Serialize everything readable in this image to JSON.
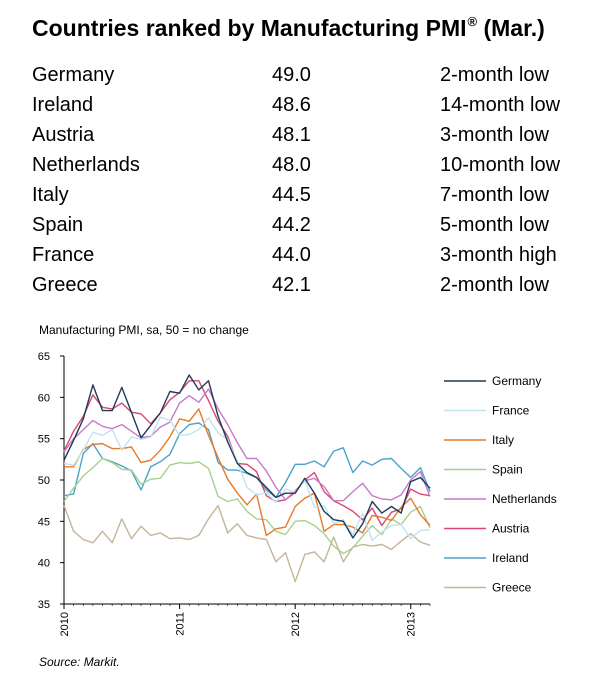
{
  "title": {
    "text": "Countries ranked by Manufacturing PMI",
    "mark": "®",
    "suffix": "(Mar.)"
  },
  "ranking": [
    {
      "country": "Germany",
      "value": "49.0",
      "note": "2-month low"
    },
    {
      "country": "Ireland",
      "value": "48.6",
      "note": "14-month low"
    },
    {
      "country": "Austria",
      "value": "48.1",
      "note": "3-month low"
    },
    {
      "country": "Netherlands",
      "value": "48.0",
      "note": "10-month low"
    },
    {
      "country": "Italy",
      "value": "44.5",
      "note": "7-month low"
    },
    {
      "country": "Spain",
      "value": "44.2",
      "note": "5-month low"
    },
    {
      "country": "France",
      "value": "44.0",
      "note": "3-month high"
    },
    {
      "country": "Greece",
      "value": "42.1",
      "note": "2-month low"
    }
  ],
  "source": "Source: Markit.",
  "chart_data": {
    "type": "line",
    "title": "Manufacturing PMI, sa, 50 = no change",
    "xlabel": "",
    "ylabel": "",
    "ylim": [
      35,
      65
    ],
    "yticks": [
      35,
      40,
      45,
      50,
      55,
      60,
      65
    ],
    "xticks": [
      "2010",
      "2011",
      "2012",
      "2013"
    ],
    "x_start": "2010-01",
    "x_end": "2013-03",
    "grid": false,
    "legend_position": "right",
    "series": [
      {
        "name": "Germany",
        "color": "#1f3a5a",
        "values": [
          52.4,
          54.8,
          57.4,
          61.5,
          58.4,
          58.4,
          61.2,
          58.2,
          55.1,
          56.6,
          58.1,
          60.7,
          60.5,
          62.7,
          60.9,
          62.0,
          57.7,
          54.6,
          52.0,
          50.9,
          50.3,
          49.1,
          47.9,
          48.4,
          48.4,
          50.2,
          48.4,
          46.2,
          45.2,
          45.0,
          43.0,
          44.7,
          47.4,
          46.0,
          46.8,
          46.0,
          49.8,
          50.3,
          49.0
        ]
      },
      {
        "name": "France",
        "color": "#bfe4ef",
        "values": [
          52.0,
          51.8,
          53.6,
          55.8,
          55.4,
          56.1,
          53.6,
          55.2,
          54.9,
          55.2,
          57.6,
          57.2,
          55.4,
          55.5,
          56.1,
          57.5,
          55.7,
          54.9,
          52.2,
          49.1,
          48.2,
          48.5,
          47.3,
          48.9,
          48.5,
          50.0,
          46.7,
          46.9,
          44.7,
          45.2,
          43.4,
          46.0,
          42.7,
          43.7,
          44.5,
          44.6,
          42.9,
          43.9,
          44.0
        ]
      },
      {
        "name": "Italy",
        "color": "#e57a29",
        "values": [
          51.6,
          51.6,
          53.7,
          54.3,
          54.4,
          53.8,
          53.8,
          54.0,
          52.1,
          52.4,
          53.6,
          55.2,
          57.4,
          57.1,
          58.6,
          55.4,
          52.7,
          50.1,
          48.4,
          47.0,
          48.3,
          43.3,
          44.1,
          44.3,
          46.8,
          47.8,
          48.4,
          43.8,
          44.6,
          44.6,
          44.3,
          43.6,
          45.7,
          45.5,
          45.1,
          46.7,
          47.8,
          45.8,
          44.5
        ]
      },
      {
        "name": "Spain",
        "color": "#a8d08d",
        "values": [
          47.4,
          49.0,
          50.5,
          51.5,
          52.6,
          52.1,
          51.3,
          51.2,
          49.5,
          50.1,
          50.2,
          51.8,
          52.1,
          52.0,
          52.2,
          51.4,
          48.0,
          47.4,
          47.7,
          46.2,
          45.3,
          45.2,
          43.8,
          43.4,
          45.0,
          45.1,
          44.5,
          43.5,
          42.0,
          41.1,
          41.8,
          43.2,
          44.5,
          43.4,
          45.3,
          44.6,
          46.1,
          46.8,
          44.2
        ]
      },
      {
        "name": "Netherlands",
        "color": "#c67bc9",
        "values": [
          53.4,
          55.0,
          56.1,
          57.2,
          56.5,
          56.2,
          56.7,
          55.9,
          55.1,
          55.3,
          56.4,
          57.0,
          59.3,
          60.2,
          59.4,
          61.0,
          58.6,
          56.7,
          54.5,
          52.6,
          52.6,
          51.1,
          49.1,
          47.6,
          48.7,
          49.9,
          50.2,
          49.2,
          47.5,
          47.5,
          48.6,
          49.6,
          48.1,
          47.7,
          47.6,
          48.2,
          50.0,
          51.0,
          48.0
        ]
      },
      {
        "name": "Austria",
        "color": "#d94873",
        "values": [
          53.5,
          55.9,
          57.7,
          60.3,
          58.8,
          58.6,
          59.3,
          58.2,
          58.0,
          56.8,
          58.1,
          59.7,
          60.6,
          62.0,
          62.0,
          59.6,
          57.1,
          55.3,
          52.0,
          51.9,
          51.0,
          48.1,
          47.4,
          47.6,
          48.5,
          50.0,
          50.9,
          48.6,
          47.5,
          46.9,
          46.2,
          45.2,
          46.6,
          44.5,
          46.1,
          46.5,
          48.9,
          48.3,
          48.1
        ]
      },
      {
        "name": "Ireland",
        "color": "#4ba4c8",
        "values": [
          48.1,
          48.3,
          53.2,
          54.4,
          52.6,
          52.2,
          51.7,
          51.1,
          48.8,
          51.6,
          52.2,
          53.1,
          55.6,
          56.7,
          56.9,
          56.1,
          52.1,
          51.2,
          51.2,
          50.8,
          50.3,
          48.8,
          47.9,
          49.7,
          51.9,
          51.9,
          52.3,
          51.6,
          53.5,
          53.9,
          50.9,
          52.3,
          51.8,
          52.5,
          52.6,
          51.4,
          50.3,
          51.5,
          48.6
        ]
      },
      {
        "name": "Greece",
        "color": "#c2b599",
        "values": [
          46.9,
          43.8,
          42.8,
          42.4,
          43.8,
          42.4,
          45.3,
          42.9,
          44.4,
          43.3,
          43.6,
          42.9,
          43.0,
          42.8,
          43.3,
          45.3,
          46.9,
          43.6,
          44.7,
          43.3,
          43.0,
          42.8,
          40.1,
          41.2,
          37.7,
          41.0,
          41.3,
          40.1,
          43.1,
          40.1,
          41.9,
          42.2,
          42.0,
          42.2,
          41.6,
          42.6,
          43.5,
          42.5,
          42.1
        ]
      }
    ]
  }
}
